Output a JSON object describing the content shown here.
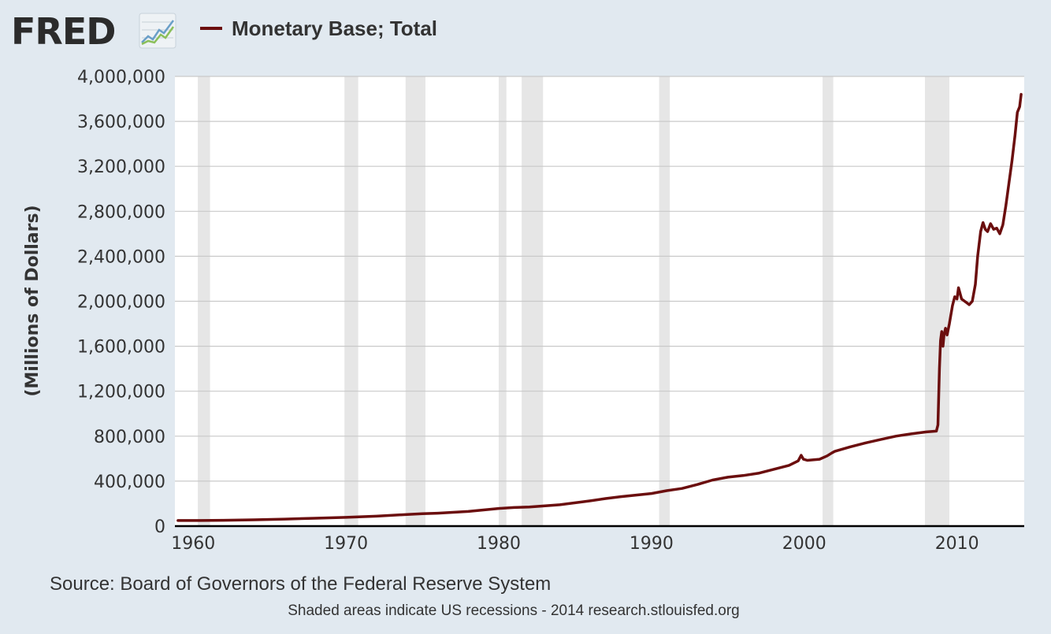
{
  "header": {
    "logo_text": "FRED",
    "logo_icon": "trend-chart-icon"
  },
  "chart_data": {
    "type": "line",
    "title": "",
    "ylabel": "(Millions of Dollars)",
    "xlabel": "",
    "xlim": [
      1958.8,
      2014.4
    ],
    "ylim": [
      0,
      4000000
    ],
    "grid": true,
    "legend_position": "top-left",
    "x_ticks": [
      {
        "value": 1960,
        "label": "1960"
      },
      {
        "value": 1970,
        "label": "1970"
      },
      {
        "value": 1980,
        "label": "1980"
      },
      {
        "value": 1990,
        "label": "1990"
      },
      {
        "value": 2000,
        "label": "2000"
      },
      {
        "value": 2010,
        "label": "2010"
      }
    ],
    "y_ticks": [
      {
        "value": 0,
        "label": "0"
      },
      {
        "value": 400000,
        "label": "400,000"
      },
      {
        "value": 800000,
        "label": "800,000"
      },
      {
        "value": 1200000,
        "label": "1,200,000"
      },
      {
        "value": 1600000,
        "label": "1,600,000"
      },
      {
        "value": 2000000,
        "label": "2,000,000"
      },
      {
        "value": 2400000,
        "label": "2,400,000"
      },
      {
        "value": 2800000,
        "label": "2,800,000"
      },
      {
        "value": 3200000,
        "label": "3,200,000"
      },
      {
        "value": 3600000,
        "label": "3,600,000"
      },
      {
        "value": 4000000,
        "label": "4,000,000"
      }
    ],
    "recessions": [
      [
        1960.3,
        1961.1
      ],
      [
        1969.9,
        1970.8
      ],
      [
        1973.9,
        1975.2
      ],
      [
        1980.0,
        1980.5
      ],
      [
        1981.5,
        1982.9
      ],
      [
        1990.5,
        1991.2
      ],
      [
        2001.2,
        2001.9
      ],
      [
        2007.9,
        2009.5
      ]
    ],
    "series": [
      {
        "name": "Monetary Base; Total",
        "color": "#6b0e0e",
        "points": [
          [
            1959.0,
            50000
          ],
          [
            1960.0,
            50000
          ],
          [
            1962.0,
            52000
          ],
          [
            1964.0,
            56000
          ],
          [
            1966.0,
            62000
          ],
          [
            1968.0,
            70000
          ],
          [
            1970.0,
            78000
          ],
          [
            1972.0,
            88000
          ],
          [
            1974.0,
            104000
          ],
          [
            1975.0,
            110000
          ],
          [
            1976.0,
            115000
          ],
          [
            1978.0,
            130000
          ],
          [
            1980.0,
            157000
          ],
          [
            1981.0,
            165000
          ],
          [
            1982.0,
            170000
          ],
          [
            1984.0,
            190000
          ],
          [
            1986.0,
            225000
          ],
          [
            1987.0,
            245000
          ],
          [
            1988.0,
            262000
          ],
          [
            1990.0,
            290000
          ],
          [
            1991.0,
            315000
          ],
          [
            1992.0,
            335000
          ],
          [
            1993.0,
            370000
          ],
          [
            1994.0,
            410000
          ],
          [
            1995.0,
            435000
          ],
          [
            1996.0,
            450000
          ],
          [
            1997.0,
            470000
          ],
          [
            1998.0,
            505000
          ],
          [
            1999.0,
            540000
          ],
          [
            1999.6,
            580000
          ],
          [
            1999.8,
            630000
          ],
          [
            1999.95,
            595000
          ],
          [
            2000.2,
            585000
          ],
          [
            2001.0,
            595000
          ],
          [
            2001.5,
            625000
          ],
          [
            2001.8,
            650000
          ],
          [
            2002.0,
            665000
          ],
          [
            2003.0,
            705000
          ],
          [
            2004.0,
            740000
          ],
          [
            2005.0,
            770000
          ],
          [
            2006.0,
            800000
          ],
          [
            2007.0,
            820000
          ],
          [
            2008.0,
            838000
          ],
          [
            2008.65,
            845000
          ],
          [
            2008.75,
            900000
          ],
          [
            2008.85,
            1400000
          ],
          [
            2008.92,
            1650000
          ],
          [
            2009.0,
            1730000
          ],
          [
            2009.08,
            1600000
          ],
          [
            2009.15,
            1700000
          ],
          [
            2009.25,
            1760000
          ],
          [
            2009.35,
            1700000
          ],
          [
            2009.5,
            1800000
          ],
          [
            2009.7,
            1960000
          ],
          [
            2009.85,
            2040000
          ],
          [
            2010.0,
            2020000
          ],
          [
            2010.1,
            2120000
          ],
          [
            2010.3,
            2020000
          ],
          [
            2010.6,
            1990000
          ],
          [
            2010.8,
            1970000
          ],
          [
            2011.0,
            2000000
          ],
          [
            2011.2,
            2150000
          ],
          [
            2011.35,
            2400000
          ],
          [
            2011.55,
            2620000
          ],
          [
            2011.7,
            2700000
          ],
          [
            2011.85,
            2640000
          ],
          [
            2012.0,
            2620000
          ],
          [
            2012.2,
            2690000
          ],
          [
            2012.4,
            2640000
          ],
          [
            2012.6,
            2650000
          ],
          [
            2012.8,
            2600000
          ],
          [
            2013.0,
            2680000
          ],
          [
            2013.2,
            2850000
          ],
          [
            2013.4,
            3050000
          ],
          [
            2013.6,
            3250000
          ],
          [
            2013.8,
            3480000
          ],
          [
            2013.95,
            3680000
          ],
          [
            2014.1,
            3730000
          ],
          [
            2014.2,
            3840000
          ]
        ]
      }
    ]
  },
  "footer": {
    "source": "Source: Board of Governors of the Federal Reserve System",
    "note": "Shaded areas indicate US recessions - 2014 research.stlouisfed.org"
  }
}
